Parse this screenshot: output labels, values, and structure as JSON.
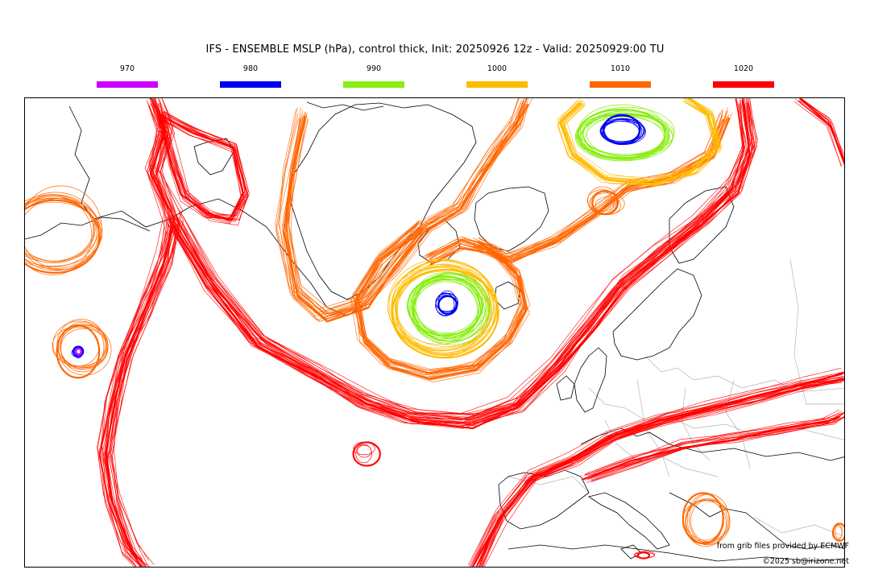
{
  "title": "IFS - ENSEMBLE MSLP (hPa), control thick, Init: 20250926 12z - Valid: 20250929:00 TU",
  "legend": [
    {
      "label": "970",
      "color": "#cc00ff"
    },
    {
      "label": "980",
      "color": "#0000ee"
    },
    {
      "label": "990",
      "color": "#88ee11"
    },
    {
      "label": "1000",
      "color": "#ffbb00"
    },
    {
      "label": "1010",
      "color": "#ff6600"
    },
    {
      "label": "1020",
      "color": "#ff0000"
    }
  ],
  "credits": {
    "provider": "from grib files provided by ECMWF",
    "copyright": "©2025 sb@irizone.net"
  }
}
